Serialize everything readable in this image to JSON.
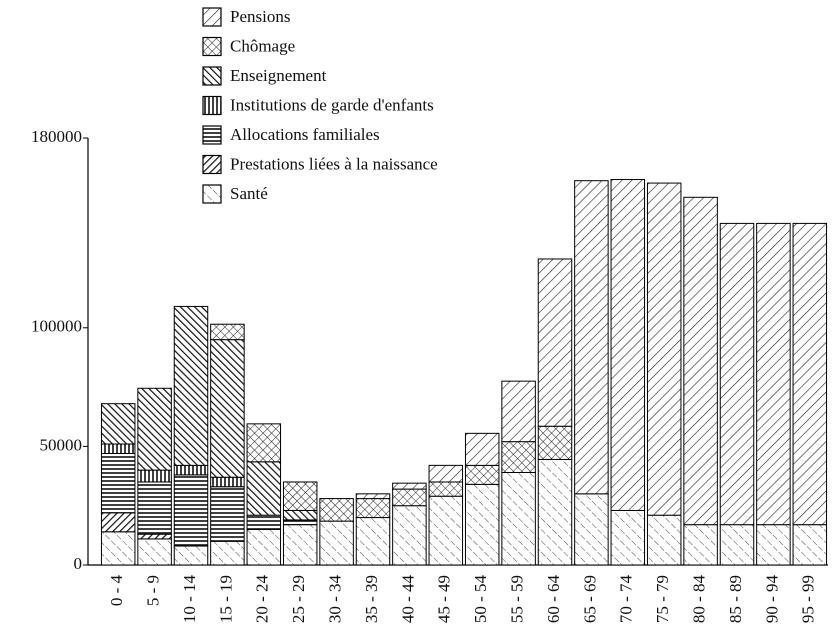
{
  "chart_data": {
    "type": "stacked_bar",
    "categories": [
      "0 - 4",
      "5 - 9",
      "10 - 14",
      "15 - 19",
      "20 - 24",
      "25 - 29",
      "30 - 34",
      "35 - 39",
      "40 - 44",
      "45 - 49",
      "50 - 54",
      "55 - 59",
      "60 - 64",
      "65 - 69",
      "70 - 74",
      "75 - 79",
      "80 - 84",
      "85 - 89",
      "90 - 94",
      "95 - 99"
    ],
    "series": [
      {
        "name": "Pensions",
        "color": "#000000",
        "values": [
          0,
          0,
          0,
          0,
          0,
          0,
          0,
          2000,
          2500,
          7000,
          13500,
          25500,
          70500,
          132000,
          139500,
          140000,
          138000,
          127000,
          127000,
          127000
        ]
      },
      {
        "name": "Chômage",
        "color": "#000000",
        "values": [
          0,
          0,
          0,
          6500,
          16000,
          12000,
          9500,
          8000,
          7000,
          6000,
          8000,
          13000,
          14000,
          0,
          0,
          0,
          0,
          0,
          0,
          0
        ]
      },
      {
        "name": "Enseignement",
        "color": "#000000",
        "values": [
          17000,
          34500,
          67000,
          58000,
          22500,
          4000,
          0,
          0,
          0,
          0,
          0,
          0,
          0,
          0,
          0,
          0,
          0,
          0,
          0,
          0
        ]
      },
      {
        "name": "Institutions de garde d'enfants",
        "color": "#000000",
        "values": [
          4000,
          5000,
          4000,
          4000,
          0,
          0,
          0,
          0,
          0,
          0,
          0,
          0,
          0,
          0,
          0,
          0,
          0,
          0,
          0,
          0
        ]
      },
      {
        "name": "Allocations familiales",
        "color": "#000000",
        "values": [
          25000,
          22000,
          30000,
          23000,
          6000,
          2000,
          0,
          0,
          0,
          0,
          0,
          0,
          0,
          0,
          0,
          0,
          0,
          0,
          0,
          0
        ]
      },
      {
        "name": "Prestations liées à la naissance",
        "color": "#000000",
        "values": [
          8000,
          2000,
          0,
          0,
          0,
          0,
          0,
          0,
          0,
          0,
          0,
          0,
          0,
          0,
          0,
          0,
          0,
          0,
          0,
          0
        ]
      },
      {
        "name": "Santé",
        "color": "#000000",
        "values": [
          14000,
          11000,
          8000,
          10000,
          15000,
          17000,
          18500,
          20000,
          25000,
          29000,
          34000,
          39000,
          44500,
          30000,
          23000,
          21000,
          17000,
          17000,
          17000,
          17000
        ]
      }
    ],
    "ylim": [
      0,
      180000
    ],
    "yticks": [
      0,
      50000,
      100000,
      180000
    ],
    "legend": "top"
  }
}
